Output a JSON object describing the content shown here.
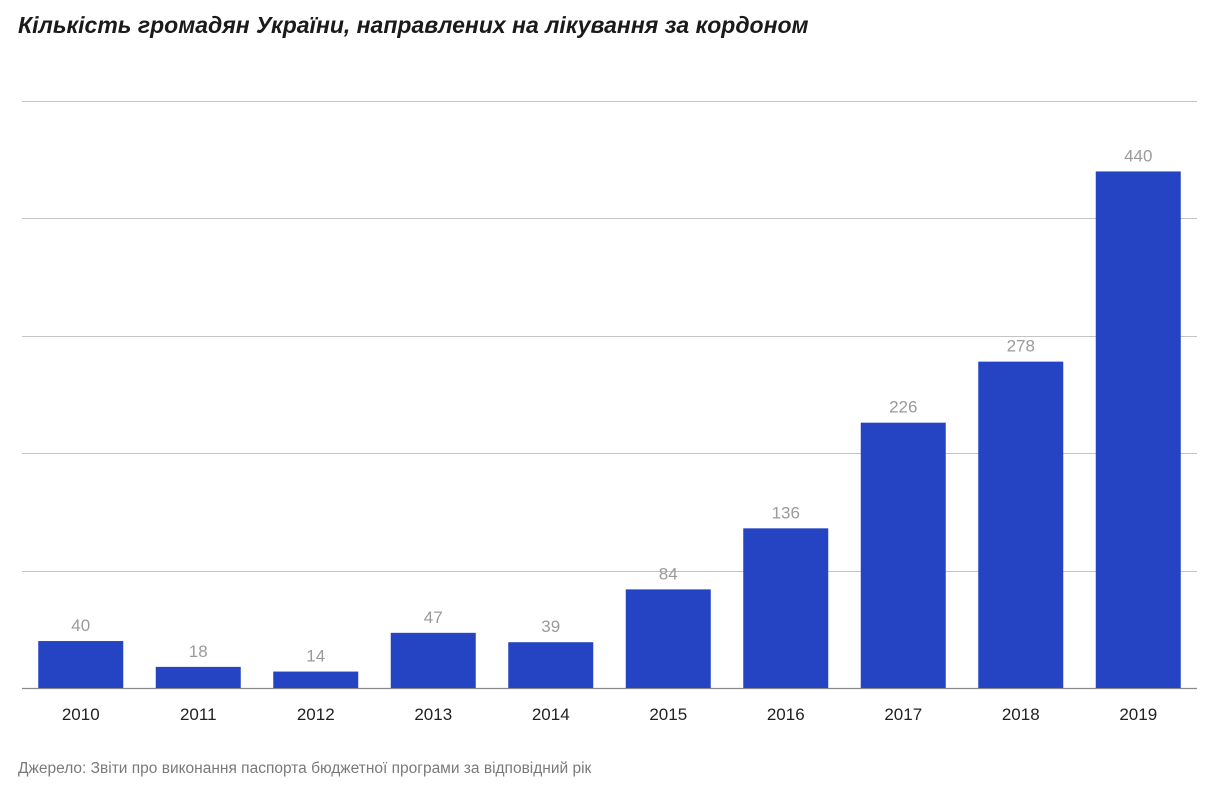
{
  "chart_data": {
    "type": "bar",
    "title": "Кількість громадян України, направлених на лікування за кордоном",
    "xlabel": "",
    "ylabel": "",
    "categories": [
      "2010",
      "2011",
      "2012",
      "2013",
      "2014",
      "2015",
      "2016",
      "2017",
      "2018",
      "2019"
    ],
    "values": [
      40,
      18,
      14,
      47,
      39,
      84,
      136,
      226,
      278,
      440
    ],
    "ylim": [
      0,
      500
    ],
    "gridlines": [
      0,
      100,
      200,
      300,
      400,
      500
    ],
    "grid": true,
    "legend": "none",
    "bar_color": "#2544c4",
    "value_label_color": "#9a9a9a",
    "source": "Джерело: Звіти про виконання паспорта бюджетної програми за відповідний рік"
  }
}
